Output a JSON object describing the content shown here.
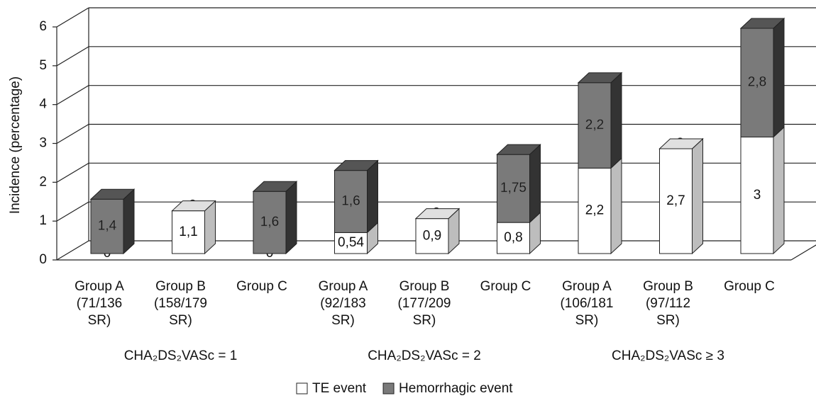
{
  "chart_data": {
    "type": "bar3d_stacked",
    "ylabel": "Incidence (percentage)",
    "categories": [
      [
        "Group A",
        "(71/136",
        "SR)"
      ],
      [
        "Group B",
        "(158/179",
        "SR)"
      ],
      [
        "Group C"
      ],
      [
        "Group A",
        "(92/183",
        "SR)"
      ],
      [
        "Group B",
        "(177/209",
        "SR)"
      ],
      [
        "Group C"
      ],
      [
        "Group A",
        "(106/181",
        "SR)"
      ],
      [
        "Group B",
        "(97/112",
        "SR)"
      ],
      [
        "Group C"
      ]
    ],
    "group_labels": [
      "CHA₂DS₂VASc = 1",
      "CHA₂DS₂VASc = 2",
      "CHA₂DS₂VASc ≥ 3"
    ],
    "series": [
      {
        "name": "TE event",
        "color": "#ffffff",
        "side": "#bdbdbd",
        "top": "#e0e0e0",
        "label_color": "#111111",
        "values": [
          0,
          1.1,
          0,
          0.54,
          0.9,
          0.8,
          2.2,
          2.7,
          3
        ],
        "value_labels": [
          "0",
          "1,1",
          "0",
          "0,54",
          "0,9",
          "0,8",
          "2,2",
          "2,7",
          "3"
        ]
      },
      {
        "name": "Hemorrhagic event",
        "color": "#7a7a7a",
        "side": "#333333",
        "top": "#555555",
        "label_color": "#ffffff",
        "values": [
          1.4,
          0,
          1.6,
          1.6,
          0,
          1.75,
          2.2,
          0,
          2.8
        ],
        "value_labels": [
          "1,4",
          "0",
          "1,6",
          "1,6",
          "0",
          "1,75",
          "2,2",
          "0",
          "2,8"
        ]
      }
    ],
    "ylim": [
      0,
      6
    ],
    "yticks": [
      0,
      1,
      2,
      3,
      4,
      5,
      6
    ],
    "grid": true
  }
}
